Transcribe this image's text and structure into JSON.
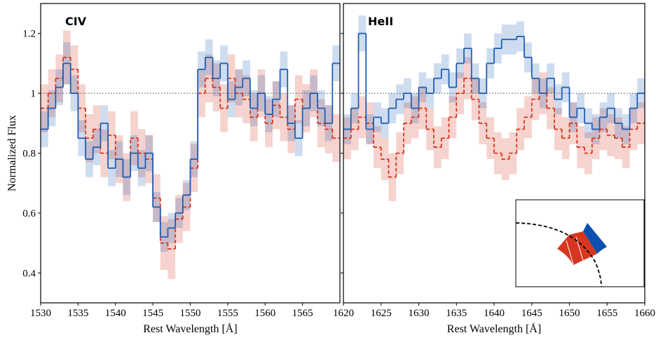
{
  "chart_data": [
    {
      "type": "step",
      "annotation": "CIV",
      "xlabel": "Rest Wavelength [Å]",
      "ylabel": "Normalized Flux",
      "xlim": [
        1530,
        1570
      ],
      "xticks": [
        1530,
        1535,
        1540,
        1545,
        1550,
        1555,
        1560,
        1565
      ],
      "ylim": [
        0.3,
        1.3
      ],
      "yticks": [
        0.4,
        0.6,
        0.8,
        1.0,
        1.2
      ],
      "ytick_labels": true,
      "reference_line": 1,
      "x": [
        1530.5,
        1531.5,
        1532.5,
        1533.5,
        1534.5,
        1535.5,
        1536.5,
        1537.5,
        1538.5,
        1539.5,
        1540.5,
        1541.5,
        1542.5,
        1543.5,
        1544.5,
        1545.5,
        1546.5,
        1547.5,
        1548.5,
        1549.5,
        1550.5,
        1551.5,
        1552.5,
        1553.5,
        1554.5,
        1555.5,
        1556.5,
        1557.5,
        1558.5,
        1559.5,
        1560.5,
        1561.5,
        1562.5,
        1563.5,
        1564.5,
        1565.5,
        1566.5,
        1567.5,
        1568.5,
        1569.5
      ],
      "series": [
        {
          "color": "#d6361f",
          "dashed": true,
          "values": [
            0.95,
            1.0,
            1.05,
            1.12,
            1.08,
            0.95,
            0.85,
            0.88,
            0.8,
            0.86,
            0.78,
            0.72,
            0.85,
            0.8,
            0.78,
            0.65,
            0.5,
            0.48,
            0.58,
            0.62,
            0.75,
            1.0,
            1.05,
            1.02,
            0.95,
            1.05,
            1.0,
            0.98,
            0.92,
            1.0,
            0.9,
            0.96,
            0.92,
            0.88,
            0.98,
            0.95,
            1.0,
            0.9,
            0.88,
            0.85
          ],
          "errors": [
            0.08,
            0.08,
            0.08,
            0.09,
            0.08,
            0.08,
            0.08,
            0.08,
            0.08,
            0.08,
            0.08,
            0.08,
            0.09,
            0.08,
            0.08,
            0.08,
            0.09,
            0.1,
            0.08,
            0.08,
            0.08,
            0.08,
            0.08,
            0.08,
            0.08,
            0.08,
            0.08,
            0.08,
            0.08,
            0.08,
            0.08,
            0.08,
            0.08,
            0.08,
            0.08,
            0.08,
            0.08,
            0.08,
            0.08,
            0.08
          ]
        },
        {
          "color": "#1f5fb4",
          "dashed": false,
          "values": [
            0.88,
            0.95,
            1.02,
            1.1,
            1.0,
            0.85,
            0.78,
            0.82,
            0.9,
            0.75,
            0.78,
            0.72,
            0.8,
            0.75,
            0.8,
            0.62,
            0.52,
            0.55,
            0.6,
            0.66,
            0.78,
            1.08,
            1.12,
            1.05,
            1.1,
            0.98,
            1.02,
            1.05,
            0.95,
            1.0,
            0.93,
            0.98,
            1.08,
            0.9,
            0.85,
            0.95,
            1.0,
            0.95,
            0.9,
            1.1
          ],
          "errors": [
            0.06,
            0.06,
            0.06,
            0.07,
            0.06,
            0.06,
            0.06,
            0.06,
            0.06,
            0.06,
            0.06,
            0.06,
            0.06,
            0.06,
            0.06,
            0.05,
            0.05,
            0.05,
            0.05,
            0.05,
            0.06,
            0.06,
            0.06,
            0.06,
            0.06,
            0.06,
            0.06,
            0.06,
            0.06,
            0.06,
            0.06,
            0.06,
            0.06,
            0.06,
            0.06,
            0.06,
            0.06,
            0.06,
            0.06,
            0.06
          ]
        }
      ]
    },
    {
      "type": "step",
      "annotation": "HeII",
      "xlabel": "Rest Wavelength [Å]",
      "xlim": [
        1620,
        1660
      ],
      "xticks": [
        1620,
        1625,
        1630,
        1635,
        1640,
        1645,
        1650,
        1655,
        1660
      ],
      "ylim": [
        0.3,
        1.3
      ],
      "yticks": [
        0.4,
        0.6,
        0.8,
        1.0,
        1.2
      ],
      "ytick_labels": false,
      "reference_line": 1,
      "x": [
        1620.5,
        1621.5,
        1622.5,
        1623.5,
        1624.5,
        1625.5,
        1626.5,
        1627.5,
        1628.5,
        1629.5,
        1630.5,
        1631.5,
        1632.5,
        1633.5,
        1634.5,
        1635.5,
        1636.5,
        1637.5,
        1638.5,
        1639.5,
        1640.5,
        1641.5,
        1642.5,
        1643.5,
        1644.5,
        1645.5,
        1646.5,
        1647.5,
        1648.5,
        1649.5,
        1650.5,
        1651.5,
        1652.5,
        1653.5,
        1654.5,
        1655.5,
        1656.5,
        1657.5,
        1658.5,
        1659.5
      ],
      "series": [
        {
          "color": "#d6361f",
          "dashed": true,
          "values": [
            0.85,
            0.88,
            0.92,
            0.9,
            0.82,
            0.78,
            0.72,
            0.8,
            0.9,
            0.92,
            0.95,
            0.88,
            0.82,
            0.85,
            0.92,
            1.0,
            1.05,
            0.98,
            0.9,
            0.85,
            0.8,
            0.78,
            0.8,
            0.88,
            0.92,
            0.98,
            1.0,
            0.95,
            0.88,
            0.85,
            0.9,
            0.82,
            0.8,
            0.85,
            0.88,
            0.86,
            0.85,
            0.82,
            0.88,
            0.9
          ],
          "errors": [
            0.07,
            0.07,
            0.07,
            0.07,
            0.07,
            0.07,
            0.08,
            0.07,
            0.07,
            0.07,
            0.07,
            0.07,
            0.07,
            0.07,
            0.07,
            0.07,
            0.07,
            0.07,
            0.07,
            0.07,
            0.07,
            0.07,
            0.07,
            0.07,
            0.07,
            0.07,
            0.07,
            0.07,
            0.07,
            0.07,
            0.07,
            0.07,
            0.07,
            0.07,
            0.07,
            0.07,
            0.07,
            0.07,
            0.07,
            0.07
          ]
        },
        {
          "color": "#1f5fb4",
          "dashed": false,
          "values": [
            0.88,
            0.95,
            1.2,
            0.88,
            0.92,
            0.9,
            0.95,
            0.98,
            1.0,
            0.95,
            1.02,
            1.0,
            1.05,
            1.08,
            1.02,
            1.1,
            1.15,
            1.05,
            1.0,
            1.1,
            1.15,
            1.18,
            1.18,
            1.19,
            1.12,
            1.05,
            1.0,
            1.05,
            0.98,
            1.02,
            0.92,
            0.95,
            0.9,
            0.88,
            0.92,
            0.95,
            0.9,
            0.88,
            0.95,
            1.0
          ],
          "errors": [
            0.05,
            0.05,
            0.06,
            0.05,
            0.05,
            0.05,
            0.05,
            0.05,
            0.05,
            0.05,
            0.05,
            0.05,
            0.05,
            0.05,
            0.05,
            0.05,
            0.05,
            0.05,
            0.05,
            0.05,
            0.05,
            0.05,
            0.05,
            0.05,
            0.05,
            0.05,
            0.05,
            0.05,
            0.05,
            0.05,
            0.05,
            0.05,
            0.05,
            0.05,
            0.05,
            0.05,
            0.05,
            0.05,
            0.05,
            0.05
          ]
        }
      ]
    }
  ]
}
